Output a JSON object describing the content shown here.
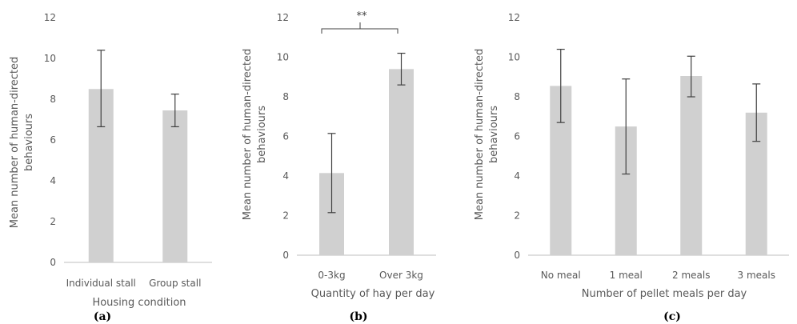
{
  "colors": {
    "bar": "#d0d0d0",
    "error_bar": "#404040",
    "axis": "#bfbfbf",
    "text": "#595959"
  },
  "chart_data": [
    {
      "type": "bar",
      "panel_label": "(a)",
      "categories": [
        "Individual stall",
        "Group stall"
      ],
      "values": [
        8.5,
        7.45
      ],
      "error_low": [
        6.65,
        6.65
      ],
      "error_high": [
        10.4,
        8.25
      ],
      "xlabel": "Housing condition",
      "ylabel_lines": [
        "Mean number of human-directed",
        "behaviours"
      ],
      "ylim": [
        0,
        12
      ],
      "yticks": [
        "0",
        "2",
        "4",
        "6",
        "8",
        "10",
        "12"
      ],
      "grid": false
    },
    {
      "type": "bar",
      "panel_label": "(b)",
      "categories": [
        "0-3kg",
        "Over 3kg"
      ],
      "values": [
        4.15,
        9.4
      ],
      "error_low": [
        2.15,
        8.6
      ],
      "error_high": [
        6.15,
        10.2
      ],
      "xlabel": "Quantity of hay per day",
      "ylabel_lines": [
        "Mean number of human-directed",
        "behaviours"
      ],
      "ylim": [
        0,
        12
      ],
      "yticks": [
        "0",
        "2",
        "4",
        "6",
        "8",
        "10",
        "12"
      ],
      "grid": false,
      "annotation": "**"
    },
    {
      "type": "bar",
      "panel_label": "(c)",
      "categories": [
        "No meal",
        "1 meal",
        "2 meals",
        "3 meals"
      ],
      "values": [
        8.55,
        6.5,
        9.05,
        7.2
      ],
      "error_low": [
        6.7,
        4.1,
        8.0,
        5.75
      ],
      "error_high": [
        10.4,
        8.9,
        10.05,
        8.65
      ],
      "xlabel": "Number of pellet meals per day",
      "ylabel_lines": [
        "Mean number of human-directed",
        "behaviours"
      ],
      "ylim": [
        0,
        12
      ],
      "yticks": [
        "0",
        "2",
        "4",
        "6",
        "8",
        "10",
        "12"
      ],
      "grid": false
    }
  ]
}
